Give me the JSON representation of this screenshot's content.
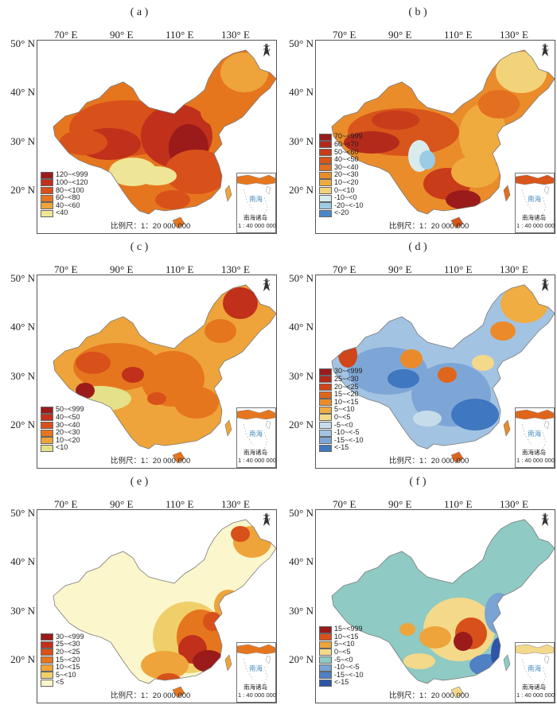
{
  "lon_labels": [
    "70° E",
    "90° E",
    "110° E",
    "130° E"
  ],
  "lat_labels": [
    "50° N",
    "40° N",
    "30° N",
    "20° N"
  ],
  "north_label": "北",
  "scale_label": "比例尺：1：20 000 000",
  "inset_sea_label": "南海",
  "inset_caption_1": "南海诸岛",
  "inset_caption_2": "1 : 40 000 000",
  "panels": [
    {
      "label": "( a )",
      "legend": [
        {
          "text": "120~<999",
          "color": "#9b1b1b"
        },
        {
          "text": "100~<120",
          "color": "#c0301a"
        },
        {
          "text": "80~<100",
          "color": "#d8501a"
        },
        {
          "text": "60~<80",
          "color": "#e6761e"
        },
        {
          "text": "40~<60",
          "color": "#eea43a"
        },
        {
          "text": "<40",
          "color": "#efe596"
        }
      ]
    },
    {
      "label": "( b )",
      "legend": [
        {
          "text": "70~<999",
          "color": "#9b1b1b"
        },
        {
          "text": "60~<70",
          "color": "#b32a1b"
        },
        {
          "text": "50~<60",
          "color": "#c93c1a"
        },
        {
          "text": "40~<50",
          "color": "#d8551b"
        },
        {
          "text": "30~<40",
          "color": "#e27020"
        },
        {
          "text": "20~<30",
          "color": "#ea8c2a"
        },
        {
          "text": "10~<20",
          "color": "#f0ab3e"
        },
        {
          "text": "0~<10",
          "color": "#f3d37a"
        },
        {
          "text": "-10~<0",
          "color": "#d8ecee"
        },
        {
          "text": "-20~<-10",
          "color": "#9ccbe4"
        },
        {
          "text": "<-20",
          "color": "#4a86c8"
        }
      ]
    },
    {
      "label": "( c )",
      "legend": [
        {
          "text": "50~<999",
          "color": "#9b1b1b"
        },
        {
          "text": "40~<50",
          "color": "#c0301a"
        },
        {
          "text": "30~<40",
          "color": "#d8501a"
        },
        {
          "text": "20~<30",
          "color": "#e6761e"
        },
        {
          "text": "10~<20",
          "color": "#eea43a"
        },
        {
          "text": "<10",
          "color": "#e5e08a"
        }
      ]
    },
    {
      "label": "( d )",
      "legend": [
        {
          "text": "30~<999",
          "color": "#9b1b1b"
        },
        {
          "text": "25~<30",
          "color": "#b32a1b"
        },
        {
          "text": "20~<25",
          "color": "#d0451a"
        },
        {
          "text": "15~<20",
          "color": "#e0651c"
        },
        {
          "text": "10~<15",
          "color": "#eb8a2a"
        },
        {
          "text": "5~<10",
          "color": "#f0ad42"
        },
        {
          "text": "0~<5",
          "color": "#f4d98a"
        },
        {
          "text": "-5~<0",
          "color": "#c7dcea"
        },
        {
          "text": "-10~<-5",
          "color": "#a3c3e2"
        },
        {
          "text": "-15~<-10",
          "color": "#7da6d6"
        },
        {
          "text": "<-15",
          "color": "#3f77c0"
        }
      ]
    },
    {
      "label": "( e )",
      "legend": [
        {
          "text": "30~<999",
          "color": "#9b1b1b"
        },
        {
          "text": "25~<30",
          "color": "#c0301a"
        },
        {
          "text": "20~<25",
          "color": "#d8501a"
        },
        {
          "text": "15~<20",
          "color": "#e6761e"
        },
        {
          "text": "10~<15",
          "color": "#eea43a"
        },
        {
          "text": "5~<10",
          "color": "#f0cf6a"
        },
        {
          "text": "<5",
          "color": "#fbf6cc"
        }
      ]
    },
    {
      "label": "( f )",
      "legend": [
        {
          "text": "15~<999",
          "color": "#9b1b1b"
        },
        {
          "text": "10~<15",
          "color": "#d8501a"
        },
        {
          "text": "5~<10",
          "color": "#eea43a"
        },
        {
          "text": "0~<5",
          "color": "#f4d98a"
        },
        {
          "text": "-5~<0",
          "color": "#8fcac4"
        },
        {
          "text": "-10~<-5",
          "color": "#79a4d4"
        },
        {
          "text": "-15~<-10",
          "color": "#4f80c4"
        },
        {
          "text": "<-15",
          "color": "#2d55a8"
        }
      ]
    }
  ]
}
